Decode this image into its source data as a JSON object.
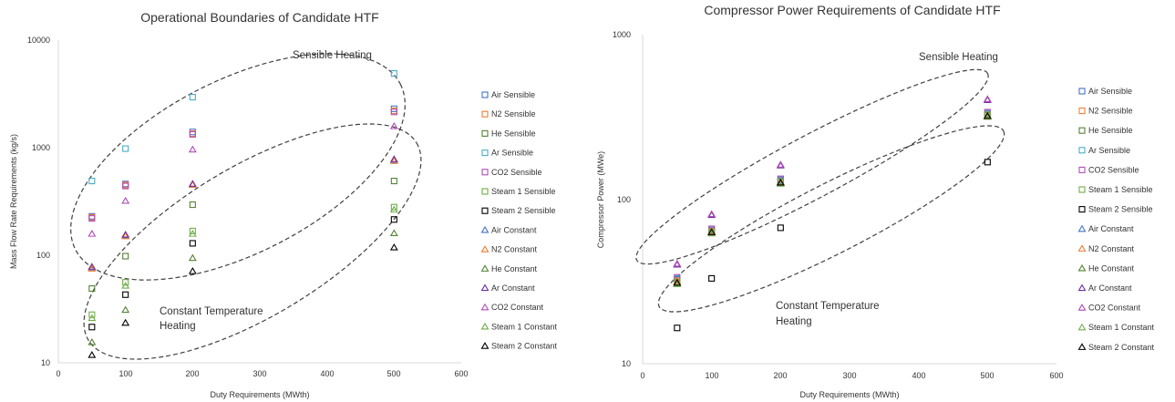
{
  "chart_data": [
    {
      "type": "scatter",
      "title": "Operational Boundaries of Candidate HTF",
      "xlabel": "Duty Requirements (MWth)",
      "ylabel": "Mass Flow Rate Requirements (kg/s)",
      "xlim": [
        0,
        600
      ],
      "ylim": [
        10,
        10000
      ],
      "y_scale": "log",
      "x_ticks": [
        "0",
        "100",
        "200",
        "300",
        "400",
        "500",
        "600"
      ],
      "y_ticks": [
        "10",
        "100",
        "1000",
        "10000"
      ],
      "grid": false,
      "legend_position": "right",
      "annotations": [
        "Sensible Heating",
        "Constant Temperature",
        "Heating"
      ],
      "series": [
        {
          "name": "Air Sensible",
          "marker": "square",
          "color": "#4472c4",
          "x": [
            50,
            100,
            200,
            500
          ],
          "y": [
            230,
            460,
            1400,
            2300
          ]
        },
        {
          "name": "N2 Sensible",
          "marker": "square",
          "color": "#ed7d31",
          "x": [
            50,
            100,
            200,
            500
          ],
          "y": [
            225,
            450,
            1350,
            2200
          ]
        },
        {
          "name": "He Sensible",
          "marker": "square",
          "color": "#548235",
          "x": [
            50,
            100,
            200,
            500
          ],
          "y": [
            49,
            98,
            295,
            490
          ]
        },
        {
          "name": "Ar Sensible",
          "marker": "square",
          "color": "#4bacc6",
          "x": [
            50,
            100,
            200,
            500
          ],
          "y": [
            490,
            980,
            2950,
            4900
          ]
        },
        {
          "name": "CO2 Sensible",
          "marker": "square",
          "color": "#b04ab8",
          "x": [
            50,
            100,
            200,
            500
          ],
          "y": [
            220,
            440,
            1330,
            2150
          ]
        },
        {
          "name": "Steam 1 Sensible",
          "marker": "square",
          "color": "#70ad47",
          "x": [
            50,
            100,
            200,
            500
          ],
          "y": [
            28,
            56,
            168,
            280
          ]
        },
        {
          "name": "Steam 2 Sensible",
          "marker": "square",
          "color": "#000000",
          "x": [
            50,
            100,
            200,
            500
          ],
          "y": [
            21.5,
            43,
            129,
            215
          ]
        },
        {
          "name": "Air Constant",
          "marker": "triangle",
          "color": "#4472c4",
          "x": [
            50,
            100,
            200,
            500
          ],
          "y": [
            76,
            152,
            455,
            760
          ]
        },
        {
          "name": "N2 Constant",
          "marker": "triangle",
          "color": "#ed7d31",
          "x": [
            50,
            100,
            200,
            500
          ],
          "y": [
            75,
            150,
            450,
            750
          ]
        },
        {
          "name": "He Constant",
          "marker": "triangle",
          "color": "#548235",
          "x": [
            50,
            100,
            200,
            500
          ],
          "y": [
            15.5,
            31,
            94,
            160
          ]
        },
        {
          "name": "Ar Constant",
          "marker": "triangle",
          "color": "#7030a0",
          "x": [
            50,
            100,
            200,
            500
          ],
          "y": [
            78,
            155,
            460,
            780
          ]
        },
        {
          "name": "CO2 Constant",
          "marker": "triangle",
          "color": "#b04ab8",
          "x": [
            50,
            100,
            200,
            500
          ],
          "y": [
            158,
            320,
            960,
            1580
          ]
        },
        {
          "name": "Steam 1 Constant",
          "marker": "triangle",
          "color": "#70ad47",
          "x": [
            50,
            100,
            200,
            500
          ],
          "y": [
            26,
            52,
            158,
            265
          ]
        },
        {
          "name": "Steam 2 Constant",
          "marker": "triangle",
          "color": "#000000",
          "x": [
            50,
            100,
            200,
            500
          ],
          "y": [
            11.8,
            23.5,
            71,
            118
          ]
        }
      ]
    },
    {
      "type": "scatter",
      "title": "Compressor Power Requirements of Candidate HTF",
      "xlabel": "Duty Requirements (MWth)",
      "ylabel": "Compressor Power (MWe)",
      "xlim": [
        0,
        600
      ],
      "ylim": [
        10,
        1000
      ],
      "y_scale": "log",
      "x_ticks": [
        "0",
        "100",
        "200",
        "300",
        "400",
        "500",
        "600"
      ],
      "y_ticks": [
        "10",
        "100",
        "1000"
      ],
      "grid": false,
      "legend_position": "right",
      "annotations": [
        "Sensible Heating",
        "Constant Temperature",
        "Heating"
      ],
      "series": [
        {
          "name": "Air Sensible",
          "marker": "square",
          "color": "#4472c4",
          "x": [
            50,
            100,
            200,
            500
          ],
          "y": [
            32.5,
            65,
            130,
            330
          ]
        },
        {
          "name": "N2 Sensible",
          "marker": "square",
          "color": "#ed7d31",
          "x": [
            50,
            100,
            200,
            500
          ],
          "y": [
            32,
            64,
            128,
            325
          ]
        },
        {
          "name": "He Sensible",
          "marker": "square",
          "color": "#548235",
          "x": [
            50,
            100,
            200,
            500
          ],
          "y": [
            31,
            63,
            127,
            322
          ]
        },
        {
          "name": "Ar Sensible",
          "marker": "square",
          "color": "#4bacc6",
          "x": [
            50,
            100,
            200,
            500
          ],
          "y": [
            33,
            66,
            132,
            335
          ]
        },
        {
          "name": "CO2 Sensible",
          "marker": "square",
          "color": "#b04ab8",
          "x": [
            50,
            100,
            200,
            500
          ],
          "y": [
            33.5,
            66,
            133,
            338
          ]
        },
        {
          "name": "Steam 1 Sensible",
          "marker": "square",
          "color": "#70ad47",
          "x": [
            50,
            100,
            200,
            500
          ],
          "y": [
            31.5,
            63.5,
            128,
            326
          ]
        },
        {
          "name": "Steam 2 Sensible",
          "marker": "square",
          "color": "#000000",
          "x": [
            50,
            100,
            200,
            500
          ],
          "y": [
            16.5,
            33,
            67,
            168
          ]
        },
        {
          "name": "Air Constant",
          "marker": "triangle",
          "color": "#4472c4",
          "x": [
            50,
            100,
            200,
            500
          ],
          "y": [
            31,
            63,
            126,
            320
          ]
        },
        {
          "name": "N2 Constant",
          "marker": "triangle",
          "color": "#ed7d31",
          "x": [
            50,
            100,
            200,
            500
          ],
          "y": [
            31.5,
            63.5,
            127,
            322
          ]
        },
        {
          "name": "He Constant",
          "marker": "triangle",
          "color": "#548235",
          "x": [
            50,
            100,
            200,
            500
          ],
          "y": [
            30.5,
            62,
            125,
            318
          ]
        },
        {
          "name": "Ar Constant",
          "marker": "triangle",
          "color": "#7030a0",
          "x": [
            50,
            100,
            200,
            500
          ],
          "y": [
            40,
            80,
            160,
            400
          ]
        },
        {
          "name": "CO2 Constant",
          "marker": "triangle",
          "color": "#b04ab8",
          "x": [
            50,
            100,
            200,
            500
          ],
          "y": [
            40.5,
            81,
            162,
            405
          ]
        },
        {
          "name": "Steam 1 Constant",
          "marker": "triangle",
          "color": "#70ad47",
          "x": [
            50,
            100,
            200,
            500
          ],
          "y": [
            30.5,
            62,
            124,
            316
          ]
        },
        {
          "name": "Steam 2 Constant",
          "marker": "triangle",
          "color": "#000000",
          "x": [
            50,
            100,
            200,
            500
          ],
          "y": [
            31,
            63,
            126,
            320
          ]
        }
      ]
    }
  ]
}
